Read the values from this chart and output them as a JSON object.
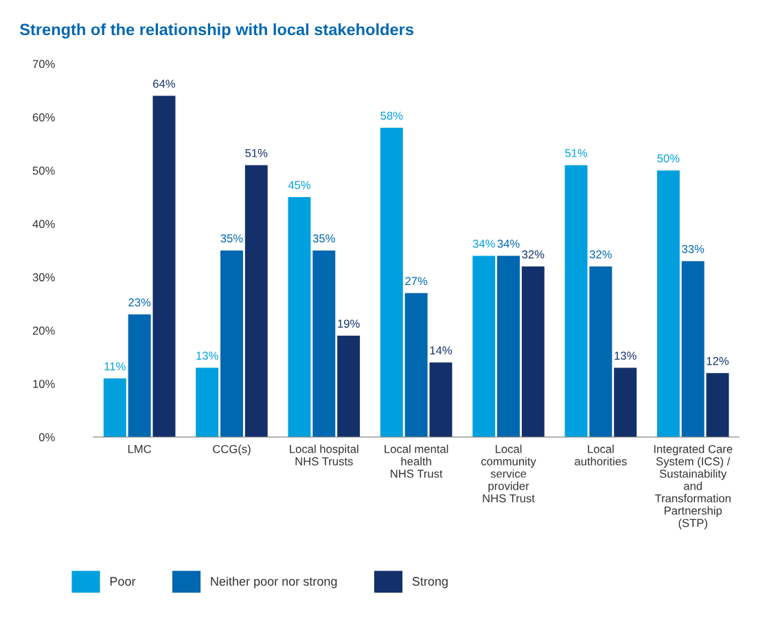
{
  "chart_data": {
    "type": "bar",
    "title": "Strength of the relationship with local stakeholders",
    "categories": [
      "LMC",
      "CCG(s)",
      "Local hospital\nNHS Trusts",
      "Local mental\nhealth\nNHS Trust",
      "Local\ncommunity\nservice\nprovider\nNHS Trust",
      "Local\nauthorities",
      "Integrated Care\nSystem (ICS) /\nSustainability\nand\nTransformation\nPartnership\n(STP)"
    ],
    "series": [
      {
        "name": "Poor",
        "color": "#00a0df",
        "values": [
          11,
          13,
          45,
          58,
          34,
          51,
          50
        ],
        "value_labels": [
          "11%",
          "13%",
          "45%",
          "58%",
          "34%",
          "51%",
          "50%"
        ]
      },
      {
        "name": "Neither poor nor strong",
        "color": "#0067b1",
        "values": [
          23,
          35,
          35,
          27,
          34,
          32,
          33
        ],
        "value_labels": [
          "23%",
          "35%",
          "35%",
          "27%",
          "34%",
          "32%",
          "33%"
        ]
      },
      {
        "name": "Strong",
        "color": "#14306b",
        "values": [
          64,
          51,
          19,
          14,
          32,
          13,
          12
        ],
        "value_labels": [
          "64%",
          "51%",
          "19%",
          "14%",
          "32%",
          "13%",
          "12%"
        ]
      }
    ],
    "ylim": [
      0,
      70
    ],
    "yticks": [
      {
        "value": 0,
        "label": "0%"
      },
      {
        "value": 10,
        "label": "10%"
      },
      {
        "value": 20,
        "label": "20%"
      },
      {
        "value": 30,
        "label": "30%"
      },
      {
        "value": 40,
        "label": "40%"
      },
      {
        "value": 50,
        "label": "50%"
      },
      {
        "value": 60,
        "label": "60%"
      },
      {
        "value": 70,
        "label": "70%"
      }
    ],
    "grid": false,
    "legend": "bottom"
  }
}
